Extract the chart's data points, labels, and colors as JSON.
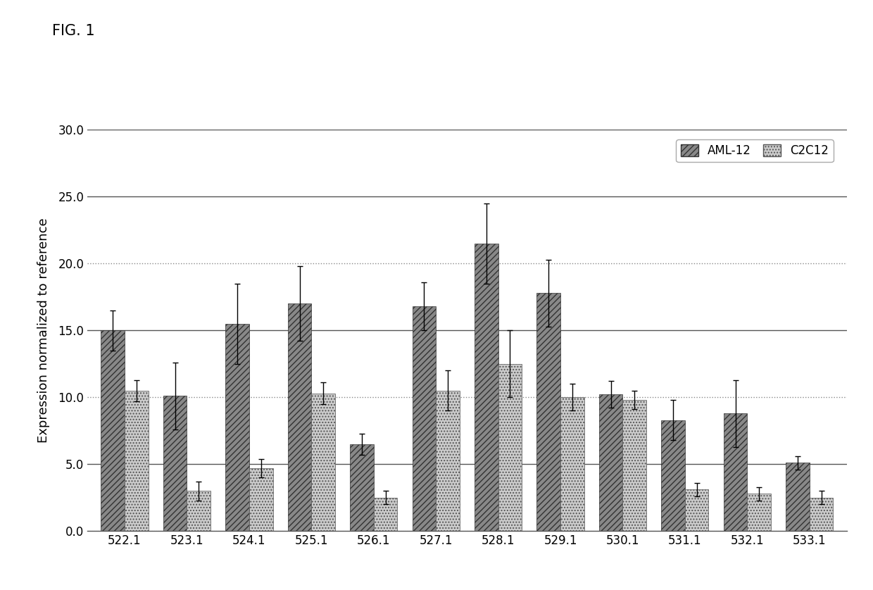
{
  "categories": [
    "522.1",
    "523.1",
    "524.1",
    "525.1",
    "526.1",
    "527.1",
    "528.1",
    "529.1",
    "530.1",
    "531.1",
    "532.1",
    "533.1"
  ],
  "aml12_values": [
    15.0,
    10.1,
    15.5,
    17.0,
    6.5,
    16.8,
    21.5,
    17.8,
    10.2,
    8.3,
    8.8,
    5.1
  ],
  "c2c12_values": [
    10.5,
    3.0,
    4.7,
    10.3,
    2.5,
    10.5,
    12.5,
    10.0,
    9.8,
    3.1,
    2.8,
    2.5
  ],
  "aml12_errors": [
    1.5,
    2.5,
    3.0,
    2.8,
    0.8,
    1.8,
    3.0,
    2.5,
    1.0,
    1.5,
    2.5,
    0.5
  ],
  "c2c12_errors": [
    0.8,
    0.7,
    0.7,
    0.8,
    0.5,
    1.5,
    2.5,
    1.0,
    0.7,
    0.5,
    0.5,
    0.5
  ],
  "bar_width": 0.38,
  "ylabel": "Expression normalized to reference",
  "ylim": [
    0,
    30
  ],
  "yticks": [
    0.0,
    5.0,
    10.0,
    15.0,
    20.0,
    25.0,
    30.0
  ],
  "fig_label": "FIG. 1",
  "legend_labels": [
    "AML-12",
    "C2C12"
  ],
  "background_color": "#ffffff",
  "solid_lines": [
    5.0,
    15.0,
    25.0,
    30.0
  ],
  "dotted_lines": [
    0.0,
    10.0,
    20.0
  ]
}
